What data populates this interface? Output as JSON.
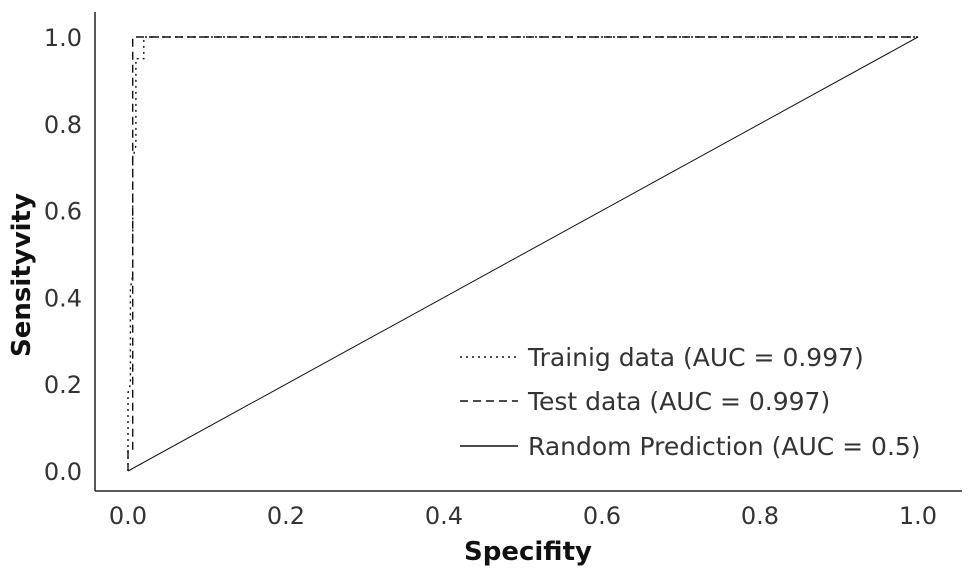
{
  "chart_data": {
    "type": "line",
    "title": "",
    "xlabel": "Specifity",
    "ylabel": "Sensityvity",
    "xlim": [
      0,
      1
    ],
    "ylim": [
      0,
      1
    ],
    "x_ticks": [
      "0.0",
      "0.2",
      "0.4",
      "0.6",
      "0.8",
      "1.0"
    ],
    "y_ticks": [
      "0.0",
      "0.2",
      "0.4",
      "0.6",
      "0.8",
      "1.0"
    ],
    "grid": false,
    "legend_position": "bottom-right",
    "series": [
      {
        "name": "Trainig data (AUC = 0.997)",
        "style": "dotted",
        "x": [
          0.0,
          0.0,
          0.003,
          0.003,
          0.006,
          0.006,
          0.01,
          0.01,
          0.02,
          0.02,
          1.0
        ],
        "y": [
          0.0,
          0.18,
          0.2,
          0.42,
          0.45,
          0.72,
          0.75,
          0.95,
          0.95,
          1.0,
          1.0
        ]
      },
      {
        "name": "Test data (AUC = 0.997)",
        "style": "dashed",
        "x": [
          0.0,
          0.0,
          0.006,
          0.006,
          1.0
        ],
        "y": [
          0.0,
          0.05,
          0.05,
          1.0,
          1.0
        ]
      },
      {
        "name": "Random Prediction (AUC = 0.5)",
        "style": "solid",
        "x": [
          0.0,
          1.0
        ],
        "y": [
          0.0,
          1.0
        ]
      }
    ]
  }
}
